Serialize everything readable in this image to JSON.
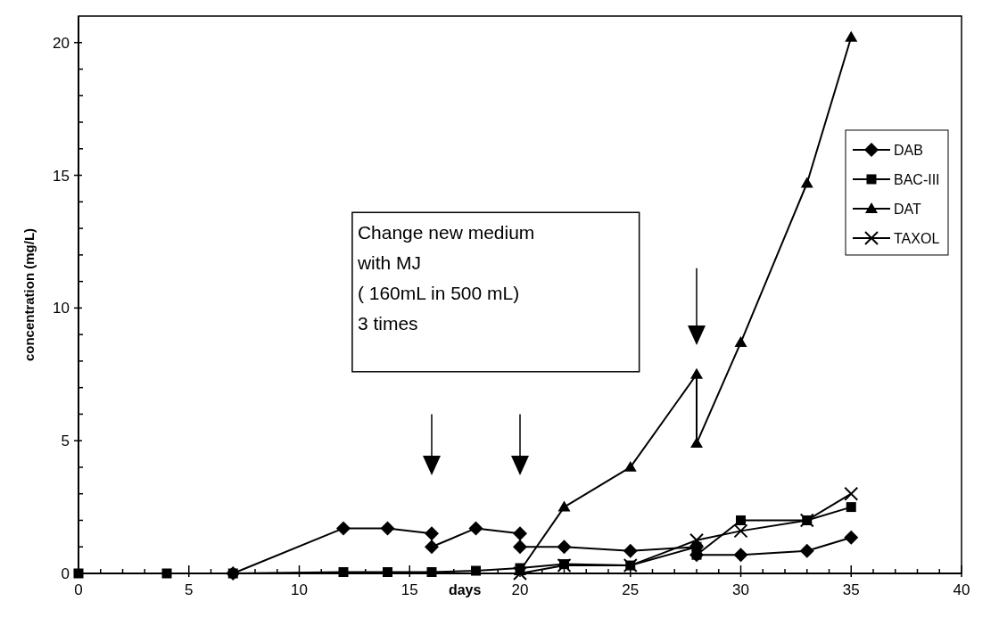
{
  "chart_data": {
    "type": "line",
    "xlabel": "days",
    "ylabel": "concentration (mg/L)",
    "xlim": [
      0,
      40
    ],
    "ylim": [
      0,
      21
    ],
    "xticks": [
      0,
      {
        "value": 1,
        "label": null
      },
      {
        "value": 2,
        "label": null
      },
      {
        "value": 3,
        "label": null
      },
      {
        "value": 4,
        "label": null
      },
      5,
      {
        "value": 6,
        "label": null
      },
      {
        "value": 7,
        "label": null
      },
      {
        "value": 8,
        "label": null
      },
      {
        "value": 9,
        "label": null
      },
      10,
      {
        "value": 11,
        "label": null
      },
      {
        "value": 12,
        "label": null
      },
      {
        "value": 13,
        "label": null
      },
      {
        "value": 14,
        "label": null
      },
      15,
      {
        "value": 16,
        "label": null
      },
      {
        "value": 17,
        "label": null
      },
      {
        "value": 18,
        "label": null
      },
      {
        "value": 19,
        "label": null
      },
      20,
      {
        "value": 21,
        "label": null
      },
      {
        "value": 22,
        "label": null
      },
      {
        "value": 23,
        "label": null
      },
      {
        "value": 24,
        "label": null
      },
      25,
      {
        "value": 26,
        "label": null
      },
      {
        "value": 27,
        "label": null
      },
      {
        "value": 28,
        "label": null
      },
      {
        "value": 29,
        "label": null
      },
      30,
      {
        "value": 31,
        "label": null
      },
      {
        "value": 32,
        "label": null
      },
      {
        "value": 33,
        "label": null
      },
      {
        "value": 34,
        "label": null
      },
      35,
      {
        "value": 36,
        "label": null
      },
      {
        "value": 37,
        "label": null
      },
      {
        "value": 38,
        "label": null
      },
      {
        "value": 39,
        "label": null
      },
      40
    ],
    "yticks": [
      0,
      {
        "value": 1,
        "label": null
      },
      {
        "value": 2,
        "label": null
      },
      {
        "value": 3,
        "label": null
      },
      {
        "value": 4,
        "label": null
      },
      5,
      {
        "value": 6,
        "label": null
      },
      {
        "value": 7,
        "label": null
      },
      {
        "value": 8,
        "label": null
      },
      {
        "value": 9,
        "label": null
      },
      10,
      {
        "value": 11,
        "label": null
      },
      {
        "value": 12,
        "label": null
      },
      {
        "value": 13,
        "label": null
      },
      {
        "value": 14,
        "label": null
      },
      15,
      {
        "value": 16,
        "label": null
      },
      {
        "value": 17,
        "label": null
      },
      {
        "value": 18,
        "label": null
      },
      {
        "value": 19,
        "label": null
      },
      20
    ],
    "grid": false,
    "legend": "right",
    "line_style": "solid",
    "series": [
      {
        "name": "DAB",
        "color": "#000000",
        "marker": "diamond",
        "x": [
          7,
          12,
          14,
          16,
          16,
          18,
          20,
          20,
          22,
          25,
          28,
          28,
          30,
          33,
          35
        ],
        "values": [
          0,
          1.7,
          1.7,
          1.5,
          1.0,
          1.7,
          1.5,
          1.0,
          1.0,
          0.85,
          1.0,
          0.7,
          0.7,
          0.85,
          1.35
        ]
      },
      {
        "name": "BAC-III",
        "color": "#000000",
        "marker": "square",
        "x": [
          0,
          4,
          7,
          12,
          14,
          16,
          18,
          20,
          22,
          25,
          28,
          28,
          30,
          33,
          35
        ],
        "values": [
          0,
          0,
          0,
          0.05,
          0.05,
          0.05,
          0.1,
          0.2,
          0.35,
          0.3,
          1.0,
          0.7,
          2.0,
          2.0,
          2.5
        ]
      },
      {
        "name": "DAT",
        "color": "#000000",
        "marker": "triangle",
        "x": [
          20,
          22,
          25,
          28,
          28,
          30,
          33,
          35
        ],
        "values": [
          0.1,
          2.5,
          4.0,
          7.5,
          4.9,
          8.7,
          14.7,
          20.2
        ]
      },
      {
        "name": "TAXOL",
        "color": "#000000",
        "marker": "cross",
        "x": [
          20,
          22,
          25,
          28,
          30,
          33,
          35
        ],
        "values": [
          0,
          0.3,
          0.3,
          1.25,
          1.6,
          2.0,
          3.0
        ]
      }
    ],
    "annotations": [
      "Change new medium\nwith MJ\n( 160mL in 500 mL)\n3 times"
    ]
  }
}
